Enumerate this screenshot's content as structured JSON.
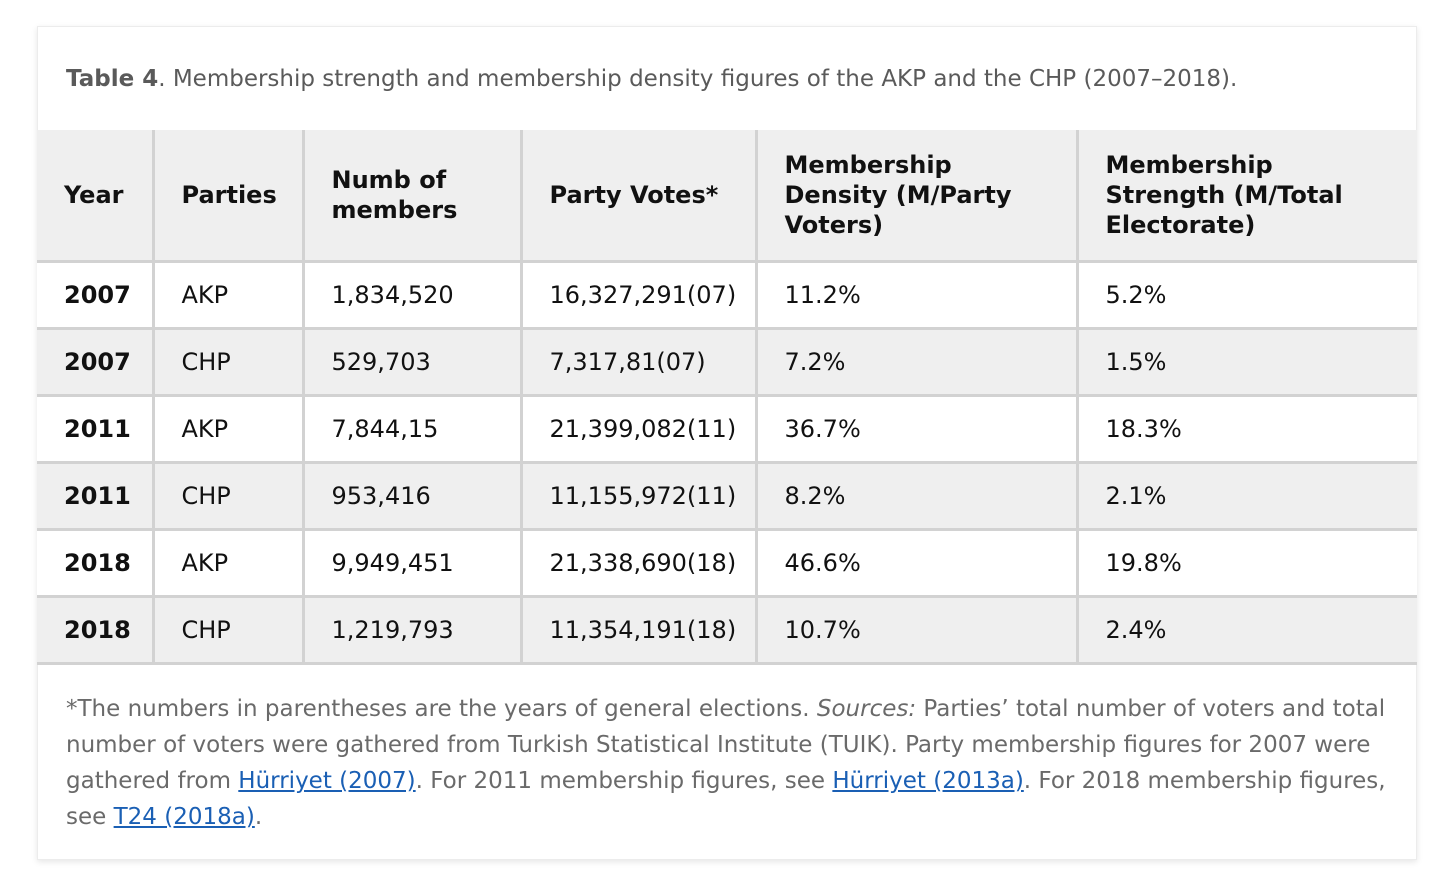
{
  "caption": {
    "label": "Table 4",
    "text": ". Membership strength and membership density figures of the AKP and the CHP (2007–2018)."
  },
  "columns": [
    "Year",
    "Parties",
    "Numb of members",
    "Party Votes*",
    "Membership Density (M/Party Voters)",
    "Membership Strength (M/Total Electorate)"
  ],
  "rows": [
    {
      "year": "2007",
      "party": "AKP",
      "members": "1,834,520",
      "votes": "16,327,291(07)",
      "density": "11.2%",
      "strength": "5.2%"
    },
    {
      "year": "2007",
      "party": "CHP",
      "members": "529,703",
      "votes": "7,317,81(07)",
      "density": "7.2%",
      "strength": "1.5%"
    },
    {
      "year": "2011",
      "party": "AKP",
      "members": "7,844,15",
      "votes": "21,399,082(11)",
      "density": "36.7%",
      "strength": "18.3%"
    },
    {
      "year": "2011",
      "party": "CHP",
      "members": "953,416",
      "votes": "11,155,972(11)",
      "density": "8.2%",
      "strength": "2.1%"
    },
    {
      "year": "2018",
      "party": "AKP",
      "members": "9,949,451",
      "votes": "21,338,690(18)",
      "density": "46.6%",
      "strength": "19.8%"
    },
    {
      "year": "2018",
      "party": "CHP",
      "members": "1,219,793",
      "votes": "11,354,191(18)",
      "density": "10.7%",
      "strength": "2.4%"
    }
  ],
  "footnote": {
    "part1": "*The numbers in parentheses are the years of general elections. ",
    "sources_label": "Sources:",
    "part2": " Parties’ total number of voters and total number of voters were gathered from Turkish Statistical Institute (TUIK). Party membership figures for 2007 were gathered from ",
    "link1": "Hürriyet (2007)",
    "part3": ". For 2011 membership figures, see ",
    "link2": "Hürriyet (2013a)",
    "part4": ". For 2018 membership figures, see ",
    "link3": "T24 (2018a)",
    "part5": "."
  },
  "colors": {
    "link": "#1a5fb4",
    "header_bg": "#efefef",
    "grid": "#d2d2d2"
  }
}
